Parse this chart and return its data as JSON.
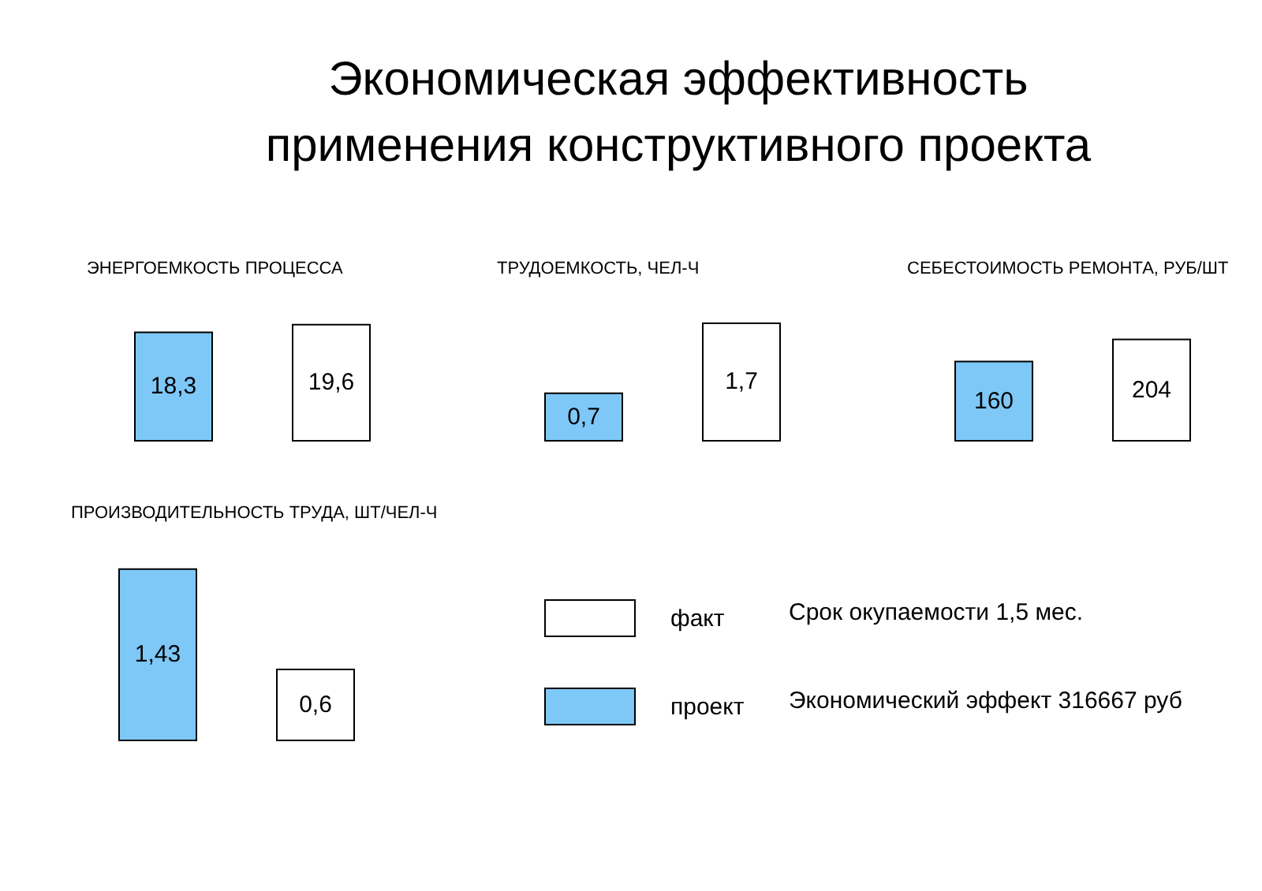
{
  "chart_data": [
    {
      "type": "other",
      "title": "Экономическая эффективность применения конструктивного проекта"
    },
    {
      "type": "bar",
      "title": "ЭНЕРГОЕМКОСТЬ ПРОЦЕССА",
      "categories": [
        null,
        null
      ],
      "values": [
        18.3,
        19.6
      ],
      "colors": [
        "#7ec8f8",
        "#ffffff"
      ],
      "value_labels": [
        "18,3",
        "19,6"
      ]
    },
    {
      "type": "bar",
      "title": "ТРУДОЕМКОСТЬ, ЧЕЛ-Ч",
      "categories": [
        null,
        null
      ],
      "values": [
        0.7,
        1.7
      ],
      "colors": [
        "#7ec8f8",
        "#ffffff"
      ],
      "value_labels": [
        "0,7",
        "1,7"
      ]
    },
    {
      "type": "bar",
      "title": "СЕБЕСТОИМОСТЬ РЕМОНТА, РУБ/ШТ",
      "categories": [
        null,
        null
      ],
      "values": [
        160,
        204
      ],
      "colors": [
        "#7ec8f8",
        "#ffffff"
      ],
      "value_labels": [
        "160",
        "204"
      ]
    },
    {
      "type": "bar",
      "title": "ПРОИЗВОДИТЕЛЬНОСТЬ ТРУДА, ШТ/ЧЕЛ-Ч",
      "categories": [
        null,
        null
      ],
      "values": [
        1.43,
        0.6
      ],
      "colors": [
        "#7ec8f8",
        "#ffffff"
      ],
      "value_labels": [
        "1,43",
        "0,6"
      ]
    },
    {
      "type": "other",
      "categories": [
        "факт",
        "проект"
      ],
      "colors": [
        "#ffffff",
        "#7ec8f8"
      ],
      "annotations": [
        "Срок окупаемости 1,5 мес.",
        "Экономический эффект 316667 руб"
      ]
    }
  ]
}
